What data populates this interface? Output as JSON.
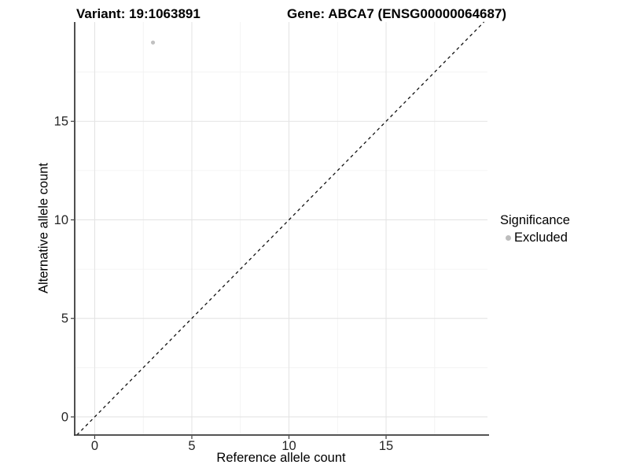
{
  "titles": {
    "variant": "Variant: 19:1063891",
    "gene": "Gene: ABCA7 (ENSG00000064687)"
  },
  "legend": {
    "title": "Significance",
    "items": [
      {
        "label": "Excluded",
        "color": "#bdbdbd"
      }
    ]
  },
  "colors": {
    "point": "#c1c1c1",
    "grid_major": "#e4e4e4",
    "grid_minor": "#f1f1f1",
    "axis_line": "#3c3c3c",
    "tick_text": "#262626",
    "diagonal": "#111111"
  },
  "chart_data": {
    "type": "scatter",
    "xlabel": "Reference allele count",
    "ylabel": "Alternative allele count",
    "x_ticks": [
      0,
      5,
      10,
      15
    ],
    "y_ticks": [
      0,
      5,
      10,
      15
    ],
    "x_minor_ticks": [
      2.5,
      7.5,
      12.5,
      17.5
    ],
    "y_minor_ticks": [
      2.5,
      7.5,
      12.5,
      17.5
    ],
    "xlim": [
      -1.03,
      20.22
    ],
    "ylim": [
      -0.92,
      20.04
    ],
    "grid": "major+minor",
    "legend_position": "right",
    "identity_line": {
      "style": "dashed",
      "from": -0.92,
      "to": 20.04
    },
    "series": [
      {
        "name": "Excluded",
        "color": "#c1c1c1",
        "points": [
          {
            "x": 3,
            "y": 19
          }
        ]
      }
    ]
  }
}
